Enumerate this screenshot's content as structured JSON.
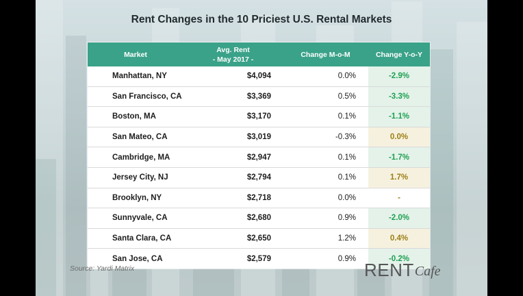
{
  "title": "Rent Changes in the 10 Priciest U.S. Rental Markets",
  "columns": {
    "market": "Market",
    "rent_line1": "Avg. Rent",
    "rent_line2": "- May 2017 -",
    "mom": "Change M-o-M",
    "yoy": "Change Y-o-Y"
  },
  "rows": [
    {
      "market": "Manhattan, NY",
      "rent": "$4,094",
      "mom": "0.0%",
      "yoy": "-2.9%",
      "tone": "neg"
    },
    {
      "market": "San Francisco, CA",
      "rent": "$3,369",
      "mom": "0.5%",
      "yoy": "-3.3%",
      "tone": "neg"
    },
    {
      "market": "Boston, MA",
      "rent": "$3,170",
      "mom": "0.1%",
      "yoy": "-1.1%",
      "tone": "neg"
    },
    {
      "market": "San Mateo, CA",
      "rent": "$3,019",
      "mom": "-0.3%",
      "yoy": "0.0%",
      "tone": "zero"
    },
    {
      "market": "Cambridge, MA",
      "rent": "$2,947",
      "mom": "0.1%",
      "yoy": "-1.7%",
      "tone": "neg"
    },
    {
      "market": "Jersey City, NJ",
      "rent": "$2,794",
      "mom": "0.1%",
      "yoy": "1.7%",
      "tone": "pos"
    },
    {
      "market": "Brooklyn, NY",
      "rent": "$2,718",
      "mom": "0.0%",
      "yoy": "-",
      "tone": "none"
    },
    {
      "market": "Sunnyvale, CA",
      "rent": "$2,680",
      "mom": "0.9%",
      "yoy": "-2.0%",
      "tone": "neg"
    },
    {
      "market": "Santa Clara, CA",
      "rent": "$2,650",
      "mom": "1.2%",
      "yoy": "0.4%",
      "tone": "pos"
    },
    {
      "market": "San Jose, CA",
      "rent": "$2,579",
      "mom": "0.9%",
      "yoy": "-0.2%",
      "tone": "neg"
    }
  ],
  "source": "Source: Yardi Matrix",
  "logo": {
    "part1": "RENT",
    "part2": "Cafe"
  },
  "colors": {
    "header": "#3aa289",
    "negative": "#1ea050",
    "positive": "#9c7f14"
  },
  "chart_data": {
    "type": "table",
    "title": "Rent Changes in the 10 Priciest U.S. Rental Markets",
    "columns": [
      "Market",
      "Avg. Rent - May 2017 -",
      "Change M-o-M",
      "Change Y-o-Y"
    ],
    "rows": [
      [
        "Manhattan, NY",
        4094,
        0.0,
        -2.9
      ],
      [
        "San Francisco, CA",
        3369,
        0.5,
        -3.3
      ],
      [
        "Boston, MA",
        3170,
        0.1,
        -1.1
      ],
      [
        "San Mateo, CA",
        3019,
        -0.3,
        0.0
      ],
      [
        "Cambridge, MA",
        2947,
        0.1,
        -1.7
      ],
      [
        "Jersey City, NJ",
        2794,
        0.1,
        1.7
      ],
      [
        "Brooklyn, NY",
        2718,
        0.0,
        null
      ],
      [
        "Sunnyvale, CA",
        2680,
        0.9,
        -2.0
      ],
      [
        "Santa Clara, CA",
        2650,
        1.2,
        0.4
      ],
      [
        "San Jose, CA",
        2579,
        0.9,
        -0.2
      ]
    ]
  }
}
